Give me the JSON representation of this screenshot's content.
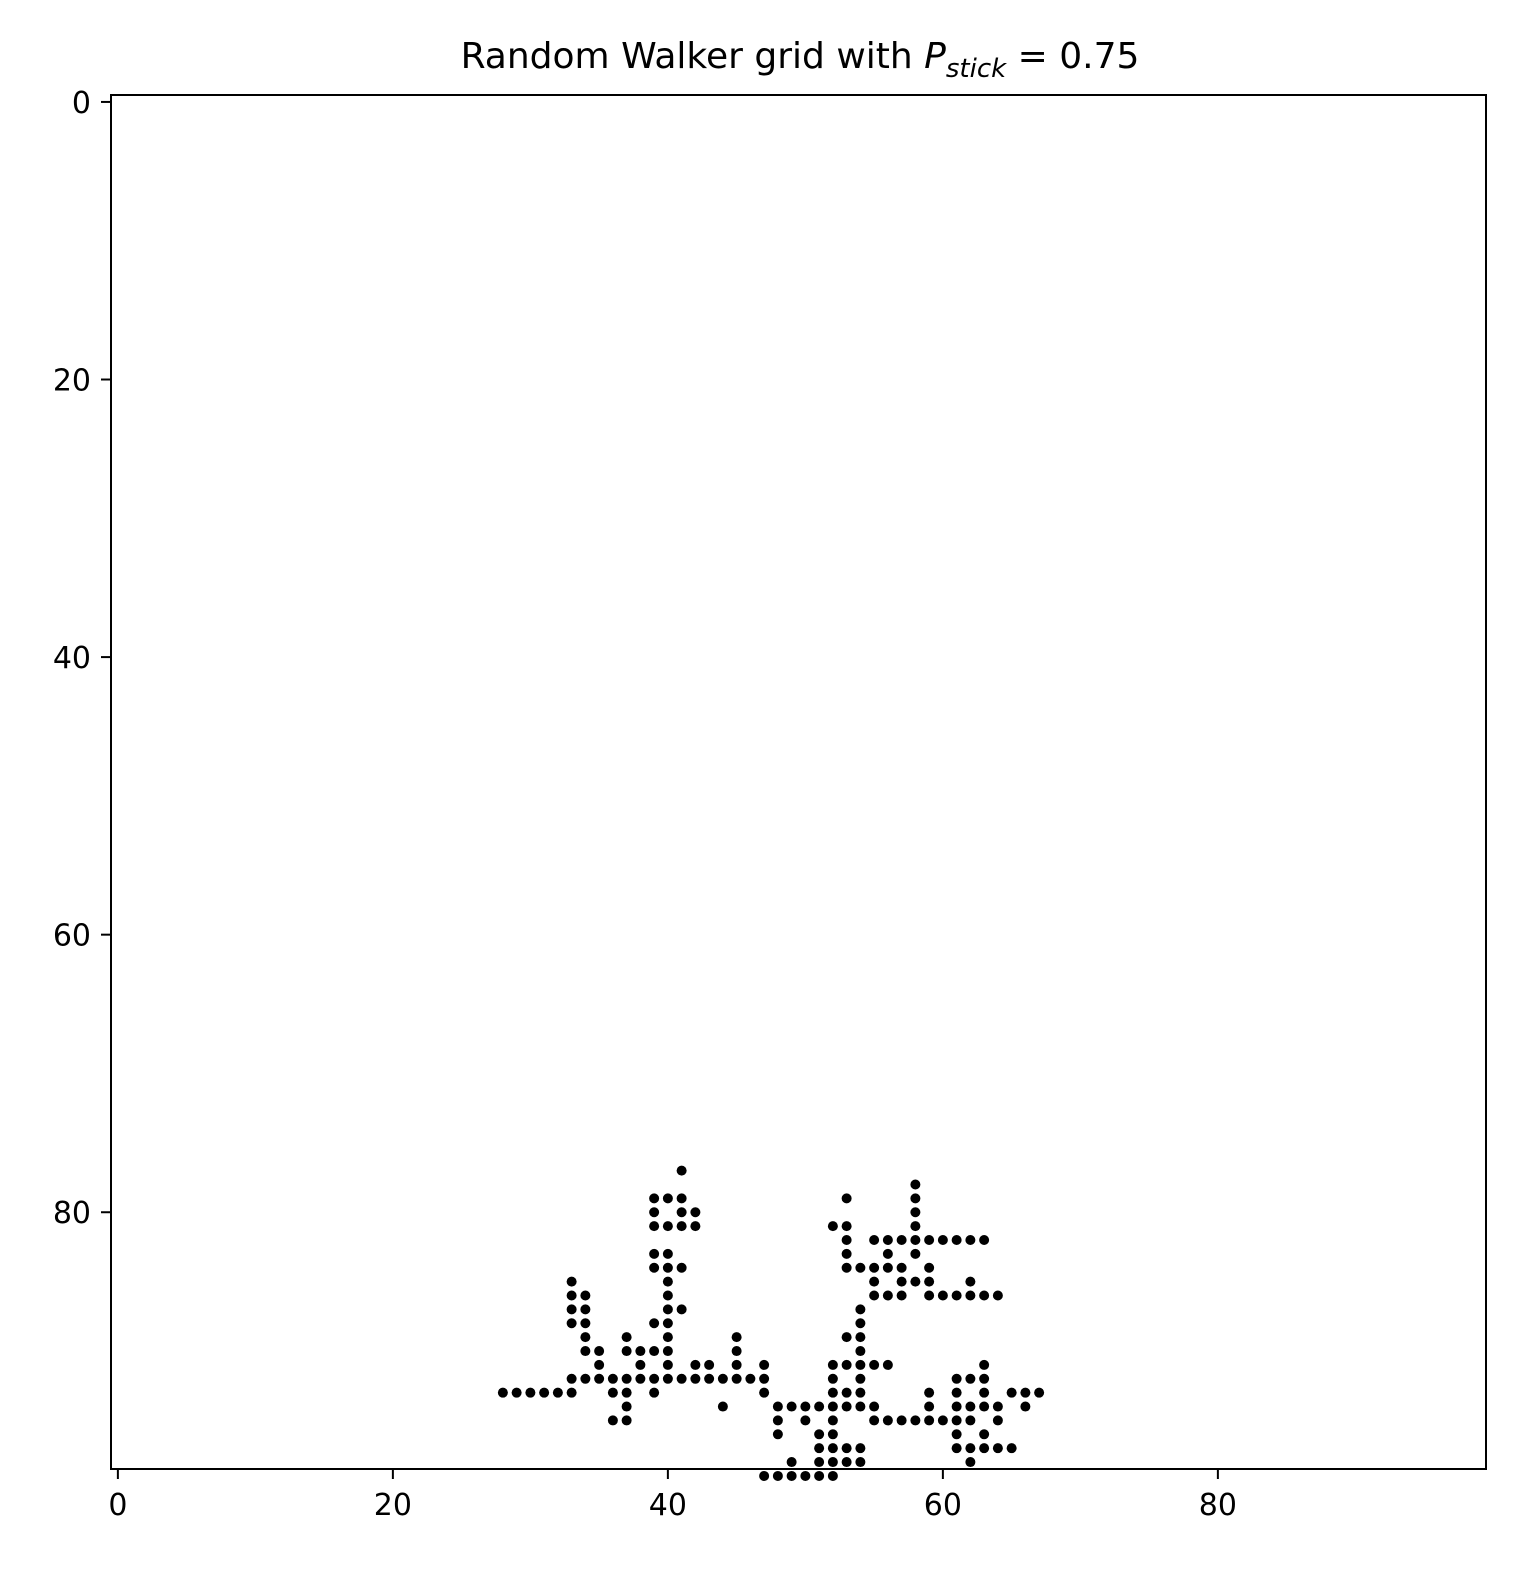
{
  "chart_data": {
    "type": "scatter",
    "title_main": "Random Walker grid with ",
    "title_symbol": "P",
    "title_subscript": "stick",
    "title_value": " = 0.75",
    "xlabel": "",
    "ylabel": "",
    "xlim": [
      -0.5,
      99.5
    ],
    "ylim": [
      98.5,
      -0.5
    ],
    "y_inverted": true,
    "grid": false,
    "x_ticks": [
      0,
      20,
      40,
      60,
      80
    ],
    "y_ticks": [
      0,
      20,
      40,
      60,
      80
    ],
    "marker_color": "#000000",
    "points": [
      [
        41,
        77
      ],
      [
        39,
        79
      ],
      [
        40,
        79
      ],
      [
        41,
        79
      ],
      [
        53,
        79
      ],
      [
        58,
        78
      ],
      [
        39,
        80
      ],
      [
        41,
        80
      ],
      [
        42,
        80
      ],
      [
        58,
        79
      ],
      [
        58,
        80
      ],
      [
        39,
        81
      ],
      [
        40,
        81
      ],
      [
        41,
        81
      ],
      [
        42,
        81
      ],
      [
        52,
        81
      ],
      [
        53,
        81
      ],
      [
        58,
        81
      ],
      [
        53,
        82
      ],
      [
        55,
        82
      ],
      [
        56,
        82
      ],
      [
        57,
        82
      ],
      [
        58,
        82
      ],
      [
        59,
        82
      ],
      [
        60,
        82
      ],
      [
        61,
        82
      ],
      [
        62,
        82
      ],
      [
        63,
        82
      ],
      [
        39,
        83
      ],
      [
        40,
        83
      ],
      [
        53,
        83
      ],
      [
        56,
        83
      ],
      [
        58,
        83
      ],
      [
        39,
        84
      ],
      [
        40,
        84
      ],
      [
        41,
        84
      ],
      [
        53,
        84
      ],
      [
        54,
        84
      ],
      [
        55,
        84
      ],
      [
        56,
        84
      ],
      [
        57,
        84
      ],
      [
        59,
        84
      ],
      [
        33,
        85
      ],
      [
        40,
        85
      ],
      [
        55,
        85
      ],
      [
        57,
        85
      ],
      [
        58,
        85
      ],
      [
        59,
        85
      ],
      [
        62,
        85
      ],
      [
        33,
        86
      ],
      [
        34,
        86
      ],
      [
        40,
        86
      ],
      [
        55,
        86
      ],
      [
        56,
        86
      ],
      [
        57,
        86
      ],
      [
        59,
        86
      ],
      [
        60,
        86
      ],
      [
        61,
        86
      ],
      [
        62,
        86
      ],
      [
        63,
        86
      ],
      [
        64,
        86
      ],
      [
        33,
        87
      ],
      [
        34,
        87
      ],
      [
        40,
        87
      ],
      [
        41,
        87
      ],
      [
        54,
        87
      ],
      [
        33,
        88
      ],
      [
        34,
        88
      ],
      [
        39,
        88
      ],
      [
        40,
        88
      ],
      [
        54,
        88
      ],
      [
        34,
        89
      ],
      [
        37,
        89
      ],
      [
        40,
        89
      ],
      [
        45,
        89
      ],
      [
        53,
        89
      ],
      [
        54,
        89
      ],
      [
        34,
        90
      ],
      [
        35,
        90
      ],
      [
        37,
        90
      ],
      [
        38,
        90
      ],
      [
        39,
        90
      ],
      [
        40,
        90
      ],
      [
        45,
        90
      ],
      [
        54,
        90
      ],
      [
        35,
        91
      ],
      [
        38,
        91
      ],
      [
        40,
        91
      ],
      [
        42,
        91
      ],
      [
        43,
        91
      ],
      [
        45,
        91
      ],
      [
        47,
        91
      ],
      [
        52,
        91
      ],
      [
        53,
        91
      ],
      [
        54,
        91
      ],
      [
        55,
        91
      ],
      [
        56,
        91
      ],
      [
        63,
        91
      ],
      [
        33,
        92
      ],
      [
        34,
        92
      ],
      [
        35,
        92
      ],
      [
        36,
        92
      ],
      [
        37,
        92
      ],
      [
        38,
        92
      ],
      [
        39,
        92
      ],
      [
        40,
        92
      ],
      [
        41,
        92
      ],
      [
        42,
        92
      ],
      [
        43,
        92
      ],
      [
        44,
        92
      ],
      [
        45,
        92
      ],
      [
        46,
        92
      ],
      [
        47,
        92
      ],
      [
        52,
        92
      ],
      [
        54,
        92
      ],
      [
        61,
        92
      ],
      [
        62,
        92
      ],
      [
        63,
        92
      ],
      [
        28,
        93
      ],
      [
        29,
        93
      ],
      [
        30,
        93
      ],
      [
        31,
        93
      ],
      [
        32,
        93
      ],
      [
        33,
        93
      ],
      [
        36,
        93
      ],
      [
        37,
        93
      ],
      [
        39,
        93
      ],
      [
        47,
        93
      ],
      [
        52,
        93
      ],
      [
        53,
        93
      ],
      [
        54,
        93
      ],
      [
        59,
        93
      ],
      [
        61,
        93
      ],
      [
        63,
        93
      ],
      [
        65,
        93
      ],
      [
        66,
        93
      ],
      [
        67,
        93
      ],
      [
        37,
        94
      ],
      [
        44,
        94
      ],
      [
        48,
        94
      ],
      [
        49,
        94
      ],
      [
        50,
        94
      ],
      [
        51,
        94
      ],
      [
        52,
        94
      ],
      [
        53,
        94
      ],
      [
        54,
        94
      ],
      [
        55,
        94
      ],
      [
        59,
        94
      ],
      [
        61,
        94
      ],
      [
        62,
        94
      ],
      [
        63,
        94
      ],
      [
        64,
        94
      ],
      [
        66,
        94
      ],
      [
        36,
        95
      ],
      [
        37,
        95
      ],
      [
        48,
        95
      ],
      [
        50,
        95
      ],
      [
        52,
        95
      ],
      [
        55,
        95
      ],
      [
        56,
        95
      ],
      [
        57,
        95
      ],
      [
        58,
        95
      ],
      [
        59,
        95
      ],
      [
        60,
        95
      ],
      [
        61,
        95
      ],
      [
        62,
        95
      ],
      [
        64,
        95
      ],
      [
        48,
        96
      ],
      [
        51,
        96
      ],
      [
        52,
        96
      ],
      [
        61,
        96
      ],
      [
        63,
        96
      ],
      [
        51,
        97
      ],
      [
        52,
        97
      ],
      [
        53,
        97
      ],
      [
        54,
        97
      ],
      [
        61,
        97
      ],
      [
        62,
        97
      ],
      [
        63,
        97
      ],
      [
        64,
        97
      ],
      [
        65,
        97
      ],
      [
        49,
        98
      ],
      [
        51,
        98
      ],
      [
        52,
        98
      ],
      [
        53,
        98
      ],
      [
        54,
        98
      ],
      [
        62,
        98
      ],
      [
        47,
        99
      ],
      [
        48,
        99
      ],
      [
        49,
        99
      ],
      [
        50,
        99
      ],
      [
        51,
        99
      ],
      [
        52,
        99
      ]
    ]
  }
}
